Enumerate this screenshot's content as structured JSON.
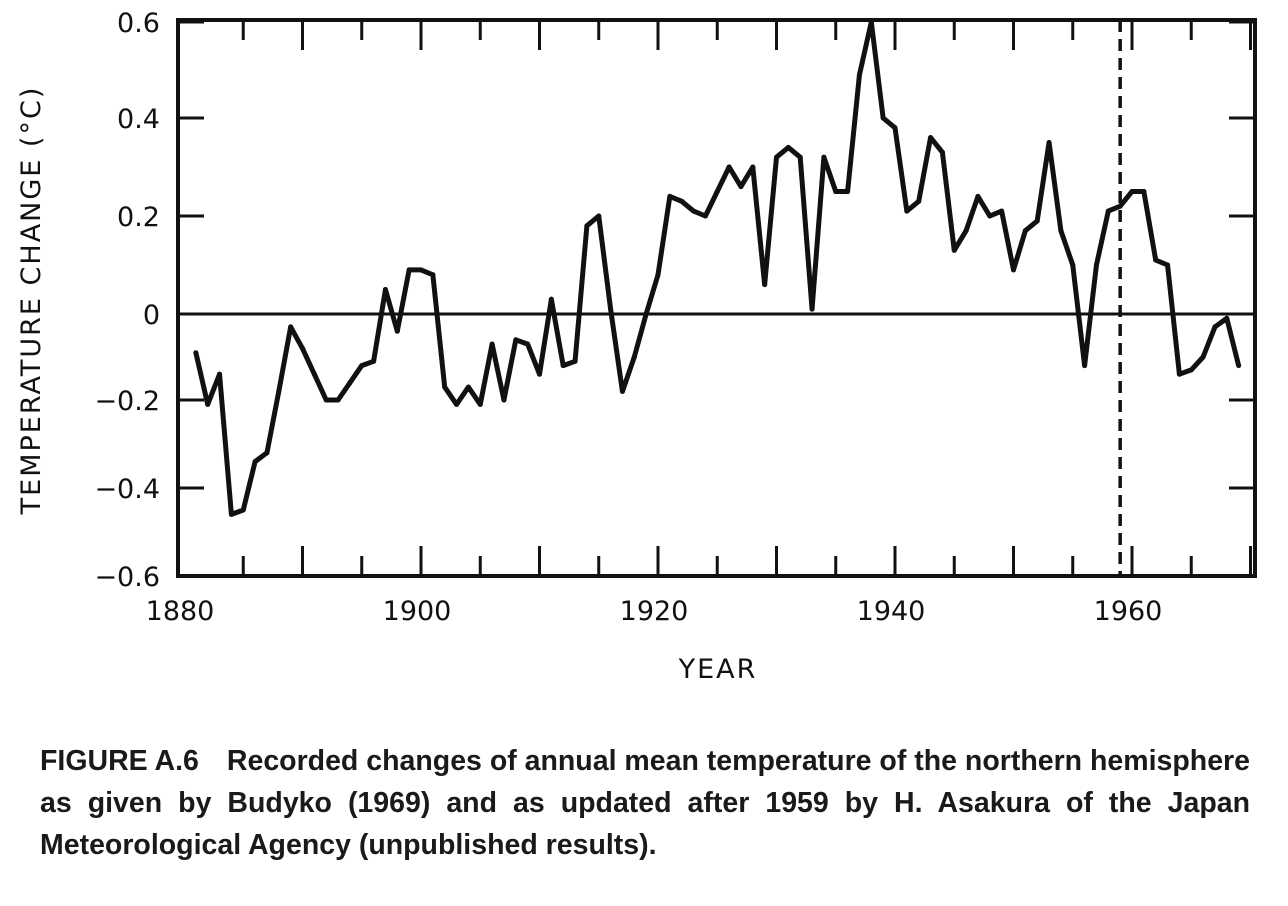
{
  "chart_data": {
    "type": "line",
    "title": "",
    "xlabel": "YEAR",
    "ylabel": "TEMPERATURE CHANGE (°C)",
    "xlim": [
      1880,
      1970.5
    ],
    "ylim": [
      -0.6,
      0.6
    ],
    "x_ticks": [
      "1880",
      "1900",
      "1920",
      "1940",
      "1960"
    ],
    "y_ticks": [
      "0.6",
      "0.4",
      "0.2",
      "0",
      "−0.2",
      "−0.4",
      "−0.6"
    ],
    "y_tick_values": [
      0.6,
      0.4,
      0.2,
      0,
      -0.2,
      -0.4,
      -0.6
    ],
    "x_tick_values": [
      1880,
      1900,
      1920,
      1940,
      1960
    ],
    "grid": false,
    "reference_lines": {
      "horizontal_zero": 0,
      "vertical_dashed_year": 1959
    },
    "series": [
      {
        "name": "Northern hemisphere annual mean temperature change",
        "start_year": 1881,
        "values": [
          -0.09,
          -0.21,
          -0.14,
          -0.46,
          -0.45,
          -0.34,
          -0.32,
          -0.18,
          -0.03,
          -0.08,
          -0.14,
          -0.2,
          -0.2,
          -0.16,
          -0.12,
          -0.11,
          0.05,
          -0.04,
          0.09,
          0.09,
          0.08,
          -0.17,
          -0.21,
          -0.17,
          -0.21,
          -0.07,
          -0.2,
          -0.06,
          -0.07,
          -0.14,
          0.03,
          -0.12,
          -0.11,
          0.18,
          0.2,
          0.01,
          -0.18,
          -0.1,
          0.0,
          0.08,
          0.24,
          0.23,
          0.21,
          0.2,
          0.25,
          0.3,
          0.26,
          0.3,
          0.06,
          0.32,
          0.34,
          0.32,
          0.01,
          0.32,
          0.25,
          0.25,
          0.49,
          0.6,
          0.4,
          0.38,
          0.21,
          0.23,
          0.36,
          0.33,
          0.13,
          0.17,
          0.24,
          0.2,
          0.21,
          0.09,
          0.17,
          0.19,
          0.35,
          0.17,
          0.1,
          -0.12,
          0.1,
          0.21,
          0.22,
          0.25,
          0.25,
          0.11,
          0.1,
          -0.14,
          -0.13,
          -0.1,
          -0.03,
          -0.01,
          -0.12
        ]
      }
    ]
  },
  "caption": {
    "figure_label": "FIGURE A.6",
    "text": "Recorded changes of annual mean temperature of the northern hemisphere as given by Budyko (1969) and as updated after 1959 by H. Asakura of the Japan Meteorological Agency (unpublished results)."
  }
}
